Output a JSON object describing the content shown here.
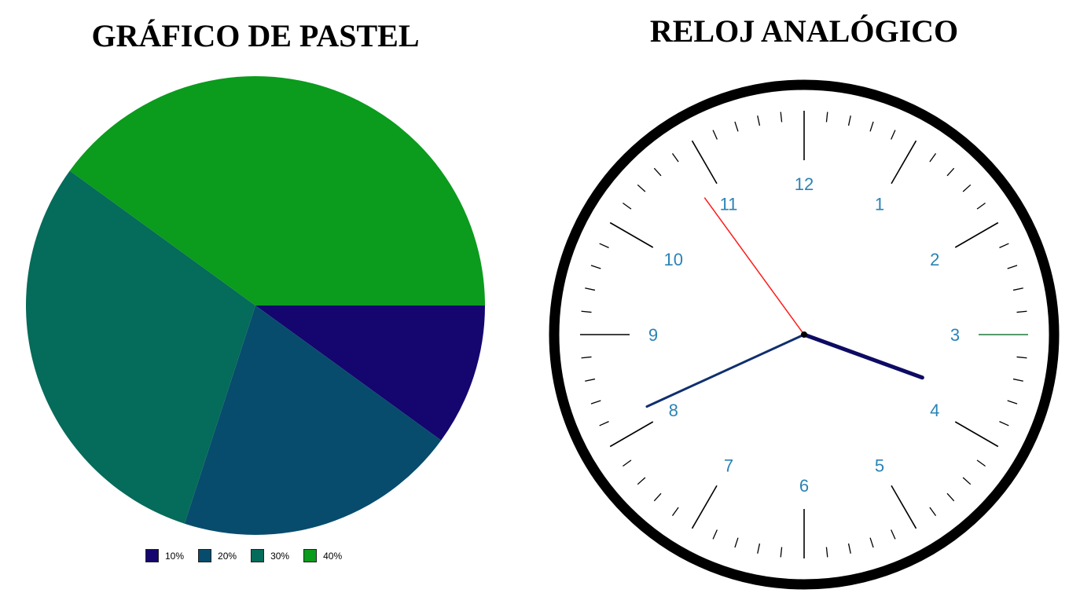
{
  "pie_title": "GRÁFICO DE PASTEL",
  "clock_title": "RELOJ ANALÓGICO",
  "chart_data": {
    "type": "pie",
    "title": "GRÁFICO DE PASTEL",
    "categories": [
      "10%",
      "20%",
      "30%",
      "40%"
    ],
    "values": [
      10,
      20,
      30,
      40
    ],
    "colors": [
      "#14066e",
      "#074c6c",
      "#056b5a",
      "#0b9b1d"
    ],
    "legend": "bottom"
  },
  "clock": {
    "numbers": [
      "12",
      "1",
      "2",
      "3",
      "4",
      "5",
      "6",
      "7",
      "8",
      "9",
      "10",
      "11"
    ],
    "number_color": "#2a83b6",
    "rim_color": "#000000",
    "hour_hand_color": "#0d0b63",
    "minute_hand_color": "#0f2f6e",
    "second_hand_color": "#ff1a1a",
    "time": {
      "hours": 3,
      "minutes": 40,
      "seconds": 54
    }
  }
}
